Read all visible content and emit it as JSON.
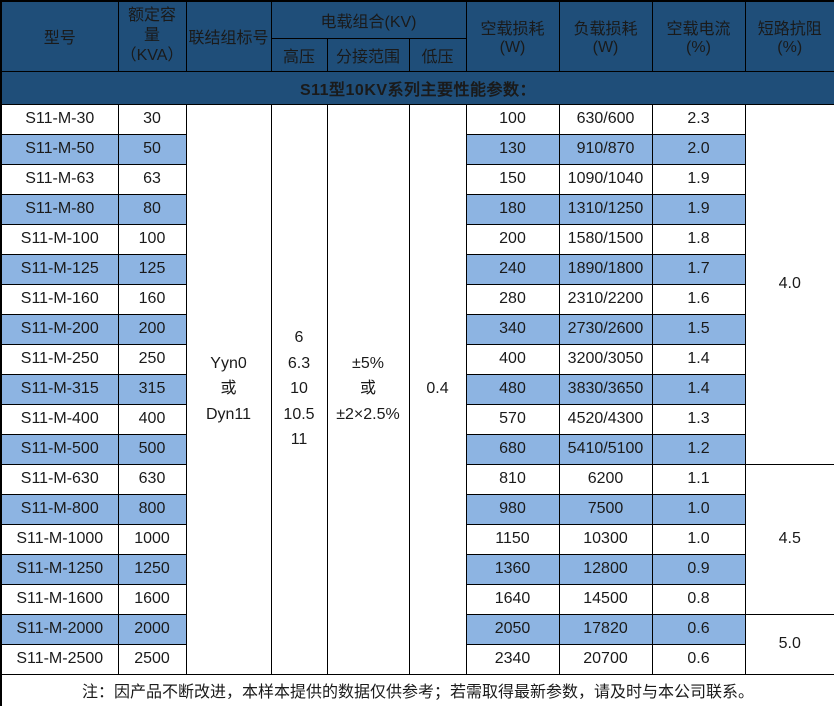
{
  "title": "S11型10KV系列主要性能参数：",
  "header": {
    "model": "型号",
    "capacity_line1": "额定容量",
    "capacity_line2": "（KVA）",
    "connection": "联结组标号",
    "load_combo": "电载组合(KV)",
    "hv": "高压",
    "tap_range": "分接范围",
    "lv": "低压",
    "no_load_loss": "空载损耗(W)",
    "load_loss": "负载损耗(W)",
    "no_load_current": "空载电流(%)",
    "impedance": "短路抗阻(%)"
  },
  "merged": {
    "connection_lines": [
      "Yyn0",
      "或",
      "Dyn11"
    ],
    "hv_lines": [
      "6",
      "6.3",
      "10",
      "10.5",
      "11"
    ],
    "tap_lines": [
      "±5%",
      "或",
      "±2×2.5%"
    ],
    "lv": "0.4",
    "impedance_groups": [
      {
        "value": "4.0",
        "rows": 12
      },
      {
        "value": "4.5",
        "rows": 5
      },
      {
        "value": "5.0",
        "rows": 2
      }
    ]
  },
  "rows": [
    {
      "model": "S11-M-30",
      "capacity": "30",
      "no_load_loss": "100",
      "load_loss": "630/600",
      "no_load_current": "2.3"
    },
    {
      "model": "S11-M-50",
      "capacity": "50",
      "no_load_loss": "130",
      "load_loss": "910/870",
      "no_load_current": "2.0"
    },
    {
      "model": "S11-M-63",
      "capacity": "63",
      "no_load_loss": "150",
      "load_loss": "1090/1040",
      "no_load_current": "1.9"
    },
    {
      "model": "S11-M-80",
      "capacity": "80",
      "no_load_loss": "180",
      "load_loss": "1310/1250",
      "no_load_current": "1.9"
    },
    {
      "model": "S11-M-100",
      "capacity": "100",
      "no_load_loss": "200",
      "load_loss": "1580/1500",
      "no_load_current": "1.8"
    },
    {
      "model": "S11-M-125",
      "capacity": "125",
      "no_load_loss": "240",
      "load_loss": "1890/1800",
      "no_load_current": "1.7"
    },
    {
      "model": "S11-M-160",
      "capacity": "160",
      "no_load_loss": "280",
      "load_loss": "2310/2200",
      "no_load_current": "1.6"
    },
    {
      "model": "S11-M-200",
      "capacity": "200",
      "no_load_loss": "340",
      "load_loss": "2730/2600",
      "no_load_current": "1.5"
    },
    {
      "model": "S11-M-250",
      "capacity": "250",
      "no_load_loss": "400",
      "load_loss": "3200/3050",
      "no_load_current": "1.4"
    },
    {
      "model": "S11-M-315",
      "capacity": "315",
      "no_load_loss": "480",
      "load_loss": "3830/3650",
      "no_load_current": "1.4"
    },
    {
      "model": "S11-M-400",
      "capacity": "400",
      "no_load_loss": "570",
      "load_loss": "4520/4300",
      "no_load_current": "1.3"
    },
    {
      "model": "S11-M-500",
      "capacity": "500",
      "no_load_loss": "680",
      "load_loss": "5410/5100",
      "no_load_current": "1.2"
    },
    {
      "model": "S11-M-630",
      "capacity": "630",
      "no_load_loss": "810",
      "load_loss": "6200",
      "no_load_current": "1.1"
    },
    {
      "model": "S11-M-800",
      "capacity": "800",
      "no_load_loss": "980",
      "load_loss": "7500",
      "no_load_current": "1.0"
    },
    {
      "model": "S11-M-1000",
      "capacity": "1000",
      "no_load_loss": "1150",
      "load_loss": "10300",
      "no_load_current": "1.0"
    },
    {
      "model": "S11-M-1250",
      "capacity": "1250",
      "no_load_loss": "1360",
      "load_loss": "12800",
      "no_load_current": "0.9"
    },
    {
      "model": "S11-M-1600",
      "capacity": "1600",
      "no_load_loss": "1640",
      "load_loss": "14500",
      "no_load_current": "0.8"
    },
    {
      "model": "S11-M-2000",
      "capacity": "2000",
      "no_load_loss": "2050",
      "load_loss": "17820",
      "no_load_current": "0.6"
    },
    {
      "model": "S11-M-2500",
      "capacity": "2500",
      "no_load_loss": "2340",
      "load_loss": "20700",
      "no_load_current": "0.6"
    }
  ],
  "note": "注：因产品不断改进，本样本提供的数据仅供参考；若需取得最新参数，请及时与本公司联系。",
  "colors": {
    "header_bg": "#1F4E79",
    "header_text": "#FFFFFF",
    "alt_row_bg": "#8DB4E2",
    "border": "#000000"
  }
}
